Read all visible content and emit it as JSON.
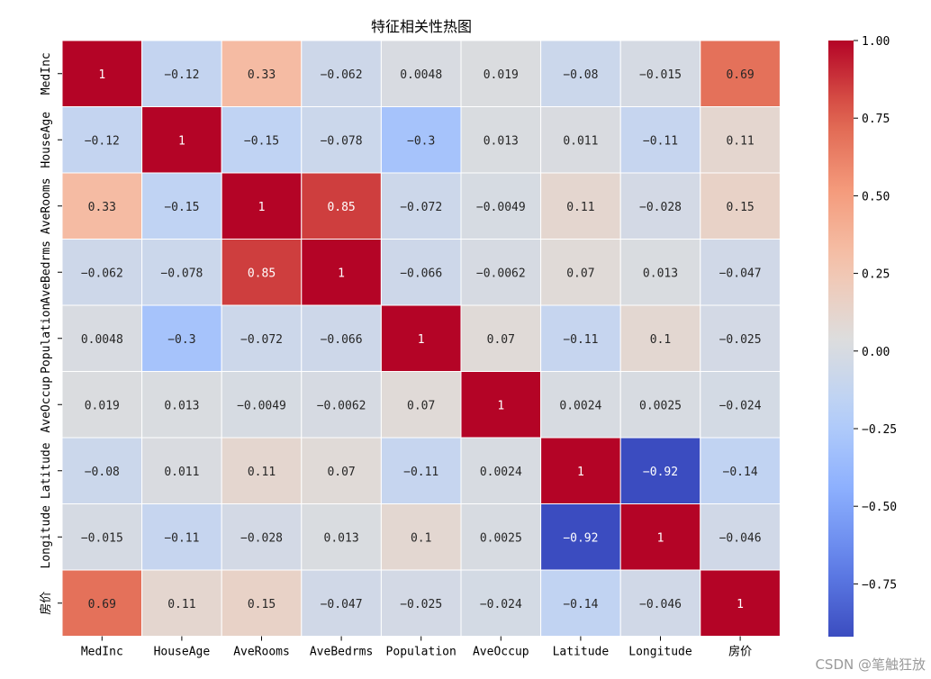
{
  "chart_data": {
    "type": "heatmap",
    "title": "特征相关性热图",
    "labels": [
      "MedInc",
      "HouseAge",
      "AveRooms",
      "AveBedrms",
      "Population",
      "AveOccup",
      "Latitude",
      "Longitude",
      "房价"
    ],
    "values": [
      [
        1,
        -0.12,
        0.33,
        -0.062,
        0.0048,
        0.019,
        -0.08,
        -0.015,
        0.69
      ],
      [
        -0.12,
        1,
        -0.15,
        -0.078,
        -0.3,
        0.013,
        0.011,
        -0.11,
        0.11
      ],
      [
        0.33,
        -0.15,
        1,
        0.85,
        -0.072,
        -0.0049,
        0.11,
        -0.028,
        0.15
      ],
      [
        -0.062,
        -0.078,
        0.85,
        1,
        -0.066,
        -0.0062,
        0.07,
        0.013,
        -0.047
      ],
      [
        0.0048,
        -0.3,
        -0.072,
        -0.066,
        1,
        0.07,
        -0.11,
        0.1,
        -0.025
      ],
      [
        0.019,
        0.013,
        -0.0049,
        -0.0062,
        0.07,
        1,
        0.0024,
        0.0025,
        -0.024
      ],
      [
        -0.08,
        0.011,
        0.11,
        0.07,
        -0.11,
        0.0024,
        1,
        -0.92,
        -0.14
      ],
      [
        -0.015,
        -0.11,
        -0.028,
        0.013,
        0.1,
        0.0025,
        -0.92,
        1,
        -0.046
      ],
      [
        0.69,
        0.11,
        0.15,
        -0.047,
        -0.025,
        -0.024,
        -0.14,
        -0.046,
        1
      ]
    ],
    "colormap": "coolwarm",
    "vmin": -0.92,
    "vmax": 1.0,
    "colorbar_ticks": [
      -0.75,
      -0.5,
      -0.25,
      0.0,
      0.25,
      0.5,
      0.75,
      1.0
    ],
    "colorbar_tick_labels": [
      "−0.75",
      "−0.50",
      "−0.25",
      "0.00",
      "0.25",
      "0.50",
      "0.75",
      "1.00"
    ]
  },
  "watermark": "CSDN @笔触狂放"
}
